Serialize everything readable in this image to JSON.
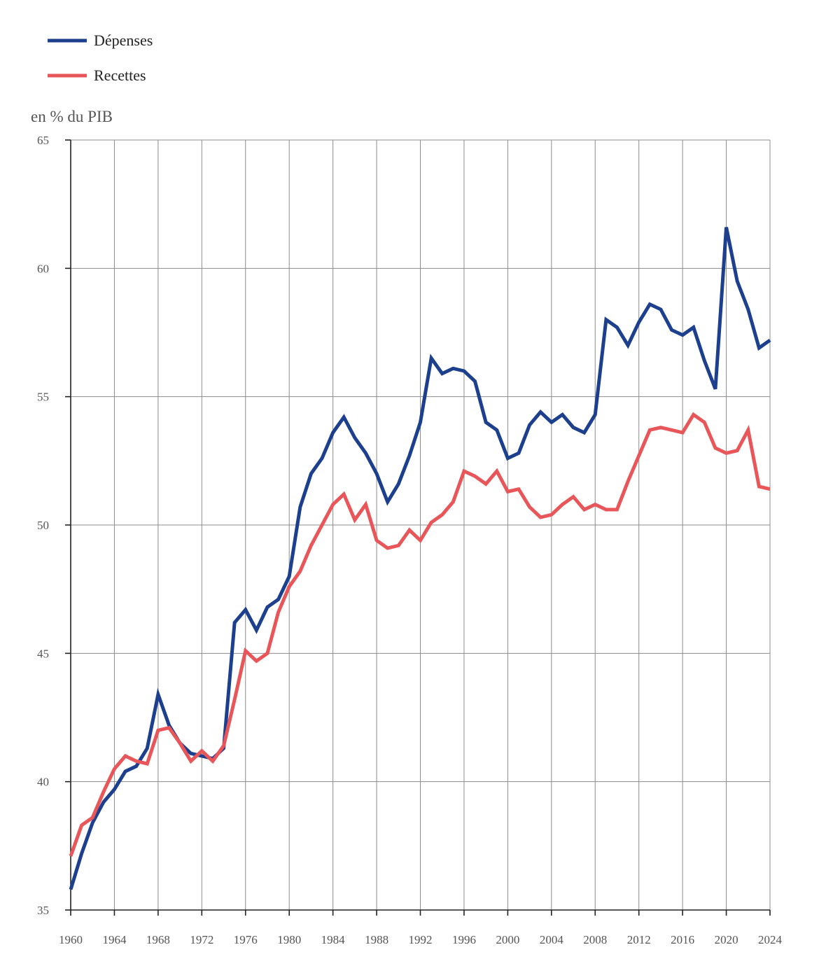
{
  "chart_data": {
    "type": "line",
    "ylabel": "en % du PIB",
    "ylim": [
      35,
      65
    ],
    "yticks": [
      35,
      40,
      45,
      50,
      55,
      60,
      65
    ],
    "xlim": [
      1960,
      2024
    ],
    "xticks": [
      1960,
      1964,
      1968,
      1972,
      1976,
      1980,
      1984,
      1988,
      1992,
      1996,
      2000,
      2004,
      2008,
      2012,
      2016,
      2020,
      2024
    ],
    "grid": true,
    "legend_position": "top-left",
    "x": [
      1960,
      1961,
      1962,
      1963,
      1964,
      1965,
      1966,
      1967,
      1968,
      1969,
      1970,
      1971,
      1972,
      1973,
      1974,
      1975,
      1976,
      1977,
      1978,
      1979,
      1980,
      1981,
      1982,
      1983,
      1984,
      1985,
      1986,
      1987,
      1988,
      1989,
      1990,
      1991,
      1992,
      1993,
      1994,
      1995,
      1996,
      1997,
      1998,
      1999,
      2000,
      2001,
      2002,
      2003,
      2004,
      2005,
      2006,
      2007,
      2008,
      2009,
      2010,
      2011,
      2012,
      2013,
      2014,
      2015,
      2016,
      2017,
      2018,
      2019,
      2020,
      2021,
      2022,
      2023,
      2024
    ],
    "series": [
      {
        "name": "Dépenses",
        "color": "#1c3f8e",
        "values": [
          35.8,
          37.2,
          38.4,
          39.2,
          39.7,
          40.4,
          40.6,
          41.3,
          43.4,
          42.2,
          41.5,
          41.1,
          41.0,
          40.9,
          41.3,
          46.2,
          46.7,
          45.9,
          46.8,
          47.1,
          48.0,
          50.7,
          52.0,
          52.6,
          53.6,
          54.2,
          53.4,
          52.8,
          52.0,
          50.9,
          51.6,
          52.7,
          54.0,
          56.5,
          55.9,
          56.1,
          56.0,
          55.6,
          54.0,
          53.7,
          52.6,
          52.8,
          53.9,
          54.4,
          54.0,
          54.3,
          53.8,
          53.6,
          54.3,
          58.0,
          57.7,
          57.0,
          57.9,
          58.6,
          58.4,
          57.6,
          57.4,
          57.7,
          56.4,
          55.3,
          61.6,
          59.5,
          58.4,
          56.9,
          57.2
        ]
      },
      {
        "name": "Recettes",
        "color": "#e9565a",
        "values": [
          37.1,
          38.3,
          38.6,
          39.6,
          40.5,
          41.0,
          40.8,
          40.7,
          42.0,
          42.1,
          41.5,
          40.8,
          41.2,
          40.8,
          41.4,
          43.2,
          45.1,
          44.7,
          45.0,
          46.6,
          47.6,
          48.2,
          49.2,
          50.0,
          50.8,
          51.2,
          50.2,
          50.8,
          49.4,
          49.1,
          49.2,
          49.8,
          49.4,
          50.1,
          50.4,
          50.9,
          52.1,
          51.9,
          51.6,
          52.1,
          51.3,
          51.4,
          50.7,
          50.3,
          50.4,
          50.8,
          51.1,
          50.6,
          50.8,
          50.6,
          50.6,
          51.7,
          52.7,
          53.7,
          53.8,
          53.7,
          53.6,
          54.3,
          54.0,
          53.0,
          52.8,
          52.9,
          53.7,
          51.5,
          51.4
        ]
      }
    ]
  }
}
